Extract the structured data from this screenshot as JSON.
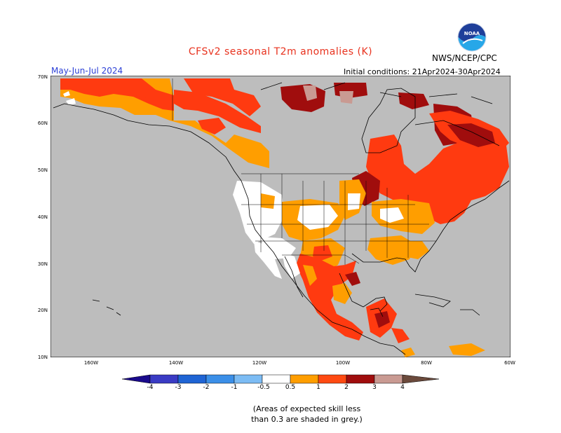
{
  "header": {
    "title": "CFSv2 seasonal T2m anomalies (K)",
    "period": "May-Jun-Jul 2024",
    "initial_conditions": "Initial conditions: 21Apr2024-30Apr2024",
    "agency": "NWS/NCEP/CPC",
    "logo_text": "NOAA"
  },
  "axes": {
    "latitudes": [
      "70N",
      "60N",
      "50N",
      "40N",
      "30N",
      "20N",
      "10N"
    ],
    "longitudes": [
      "160W",
      "140W",
      "120W",
      "100W",
      "80W",
      "60W"
    ]
  },
  "colorbar": {
    "labels": [
      "-4",
      "-3",
      "-2",
      "-1",
      "-0.5",
      "0.5",
      "1",
      "2",
      "3",
      "4"
    ],
    "colors": {
      "lt_-4": "#1a0a8c",
      "-4_-3": "#3a3bc4",
      "-3_-2": "#1f64d4",
      "-2_-1": "#3b8fe8",
      "-1_-0.5": "#7cbcf4",
      "-0.5_0.5": "#ffffff",
      "0.5_1": "#ff9e00",
      "1_2": "#ff4a12",
      "2_3": "#a00d0d",
      "3_4": "#c99a92",
      "gt_4": "#6b4a3c"
    }
  },
  "map_colors": {
    "land_grey": "#bdbdbd",
    "ocean": "#bdbdbd",
    "white": "#ffffff",
    "orange": "#ff9e00",
    "red_orange": "#ff3a10",
    "dark_red": "#a00d0d",
    "pink": "#c99a92"
  },
  "note": {
    "line1": "(Areas of expected skill less",
    "line2": "than 0.3 are shaded in grey.)"
  }
}
